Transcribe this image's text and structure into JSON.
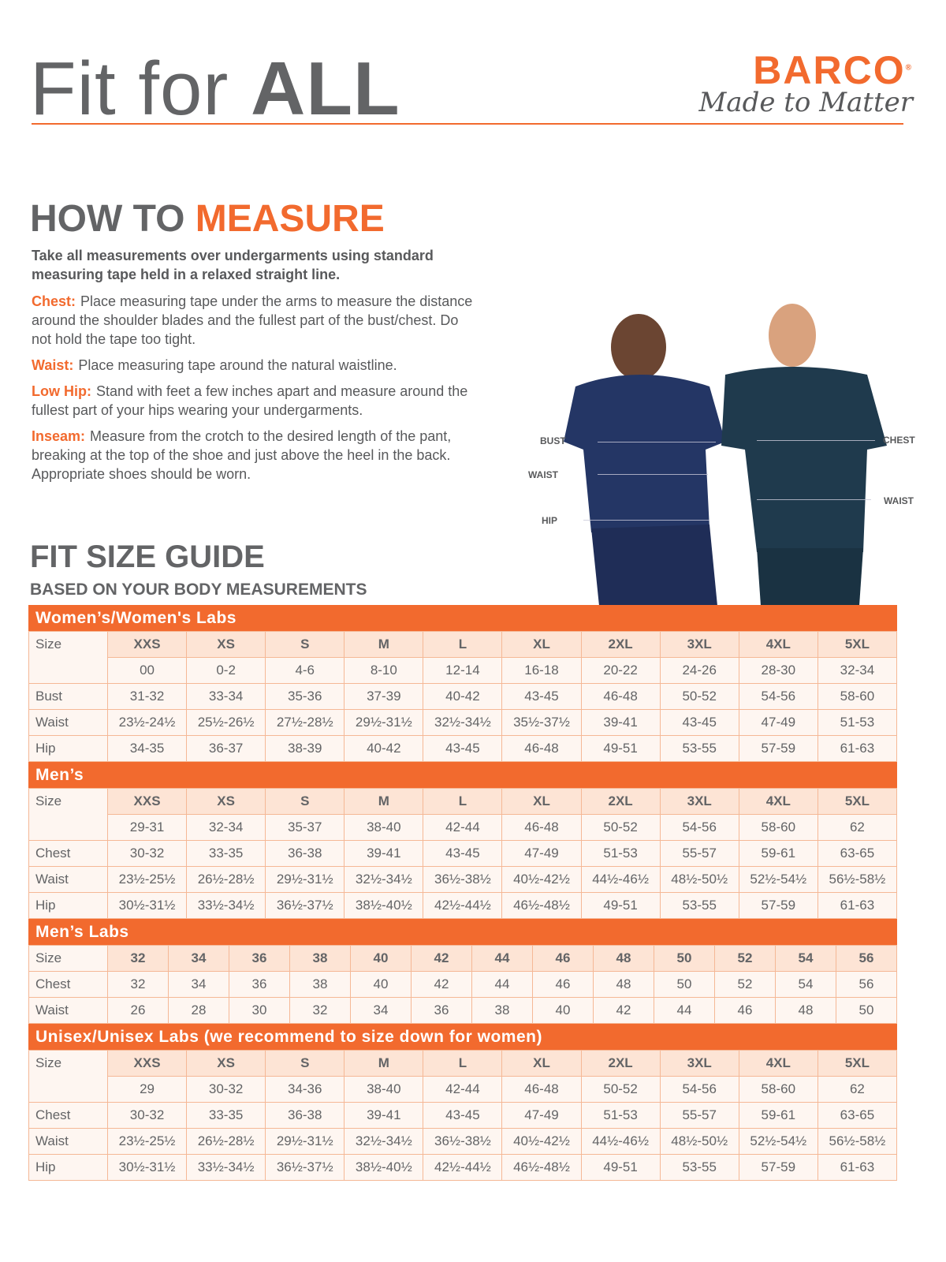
{
  "header": {
    "title_light": "Fit for ",
    "title_bold": "ALL",
    "brand": "BARCO",
    "brand_mark": "®",
    "tagline": "Made to Matter"
  },
  "measure": {
    "title_a": "HOW TO ",
    "title_b": "MEASURE",
    "lead": "Take all measurements over undergarments using standard measuring tape held in a relaxed straight line.",
    "items": [
      {
        "key": "Chest:",
        "text": "Place measuring tape under the arms to measure the distance around the shoulder blades and the fullest part of the bust/chest. Do not hold the tape too tight."
      },
      {
        "key": "Waist:",
        "text": "Place measuring tape around the natural waistline."
      },
      {
        "key": "Low Hip:",
        "text": "Stand with feet a few inches apart and measure around the fullest part of your hips wearing your undergarments."
      },
      {
        "key": "Inseam:",
        "text": "Measure from the crotch to the desired length of the pant, breaking at the top of the shoe and just above the heel in the back. Appropriate shoes should be worn."
      }
    ]
  },
  "figure": {
    "labels": {
      "bust": "BUST",
      "waist_w": "WAIST",
      "hip": "HIP",
      "chest": "CHEST",
      "waist_m": "WAIST"
    }
  },
  "guide": {
    "title": "FIT SIZE GUIDE",
    "subtitle": "BASED ON YOUR BODY MEASUREMENTS"
  },
  "tables": [
    {
      "title": "Women’s/Women's Labs",
      "sizes": [
        "XXS",
        "XS",
        "S",
        "M",
        "L",
        "XL",
        "2XL",
        "3XL",
        "4XL",
        "5XL"
      ],
      "numeric": [
        "00",
        "0-2",
        "4-6",
        "8-10",
        "12-14",
        "16-18",
        "20-22",
        "24-26",
        "28-30",
        "32-34"
      ],
      "rows": [
        {
          "label": "Bust",
          "values": [
            "31-32",
            "33-34",
            "35-36",
            "37-39",
            "40-42",
            "43-45",
            "46-48",
            "50-52",
            "54-56",
            "58-60"
          ]
        },
        {
          "label": "Waist",
          "values": [
            "23½-24½",
            "25½-26½",
            "27½-28½",
            "29½-31½",
            "32½-34½",
            "35½-37½",
            "39-41",
            "43-45",
            "47-49",
            "51-53"
          ]
        },
        {
          "label": "Hip",
          "values": [
            "34-35",
            "36-37",
            "38-39",
            "40-42",
            "43-45",
            "46-48",
            "49-51",
            "53-55",
            "57-59",
            "61-63"
          ]
        }
      ]
    },
    {
      "title": "Men’s",
      "sizes": [
        "XXS",
        "XS",
        "S",
        "M",
        "L",
        "XL",
        "2XL",
        "3XL",
        "4XL",
        "5XL"
      ],
      "numeric": [
        "29-31",
        "32-34",
        "35-37",
        "38-40",
        "42-44",
        "46-48",
        "50-52",
        "54-56",
        "58-60",
        "62"
      ],
      "rows": [
        {
          "label": "Chest",
          "values": [
            "30-32",
            "33-35",
            "36-38",
            "39-41",
            "43-45",
            "47-49",
            "51-53",
            "55-57",
            "59-61",
            "63-65"
          ]
        },
        {
          "label": "Waist",
          "values": [
            "23½-25½",
            "26½-28½",
            "29½-31½",
            "32½-34½",
            "36½-38½",
            "40½-42½",
            "44½-46½",
            "48½-50½",
            "52½-54½",
            "56½-58½"
          ]
        },
        {
          "label": "Hip",
          "values": [
            "30½-31½",
            "33½-34½",
            "36½-37½",
            "38½-40½",
            "42½-44½",
            "46½-48½",
            "49-51",
            "53-55",
            "57-59",
            "61-63"
          ]
        }
      ]
    },
    {
      "title": "Men’s Labs",
      "sizes": [
        "32",
        "34",
        "36",
        "38",
        "40",
        "42",
        "44",
        "46",
        "48",
        "50",
        "52",
        "54",
        "56"
      ],
      "rows": [
        {
          "label": "Chest",
          "values": [
            "32",
            "34",
            "36",
            "38",
            "40",
            "42",
            "44",
            "46",
            "48",
            "50",
            "52",
            "54",
            "56"
          ]
        },
        {
          "label": "Waist",
          "values": [
            "26",
            "28",
            "30",
            "32",
            "34",
            "36",
            "38",
            "40",
            "42",
            "44",
            "46",
            "48",
            "50"
          ]
        }
      ]
    },
    {
      "title": "Unisex/Unisex Labs (we recommend to size down for women)",
      "sizes": [
        "XXS",
        "XS",
        "S",
        "M",
        "L",
        "XL",
        "2XL",
        "3XL",
        "4XL",
        "5XL"
      ],
      "numeric": [
        "29",
        "30-32",
        "34-36",
        "38-40",
        "42-44",
        "46-48",
        "50-52",
        "54-56",
        "58-60",
        "62"
      ],
      "rows": [
        {
          "label": "Chest",
          "values": [
            "30-32",
            "33-35",
            "36-38",
            "39-41",
            "43-45",
            "47-49",
            "51-53",
            "55-57",
            "59-61",
            "63-65"
          ]
        },
        {
          "label": "Waist",
          "values": [
            "23½-25½",
            "26½-28½",
            "29½-31½",
            "32½-34½",
            "36½-38½",
            "40½-42½",
            "44½-46½",
            "48½-50½",
            "52½-54½",
            "56½-58½"
          ]
        },
        {
          "label": "Hip",
          "values": [
            "30½-31½",
            "33½-34½",
            "36½-37½",
            "38½-40½",
            "42½-44½",
            "46½-48½",
            "49-51",
            "53-55",
            "57-59",
            "61-63"
          ]
        }
      ]
    }
  ],
  "size_label": "Size",
  "colors": {
    "accent": "#f26a2e",
    "text": "#636466",
    "cell": "#fef6f1",
    "size_cell": "#fde4d5"
  }
}
